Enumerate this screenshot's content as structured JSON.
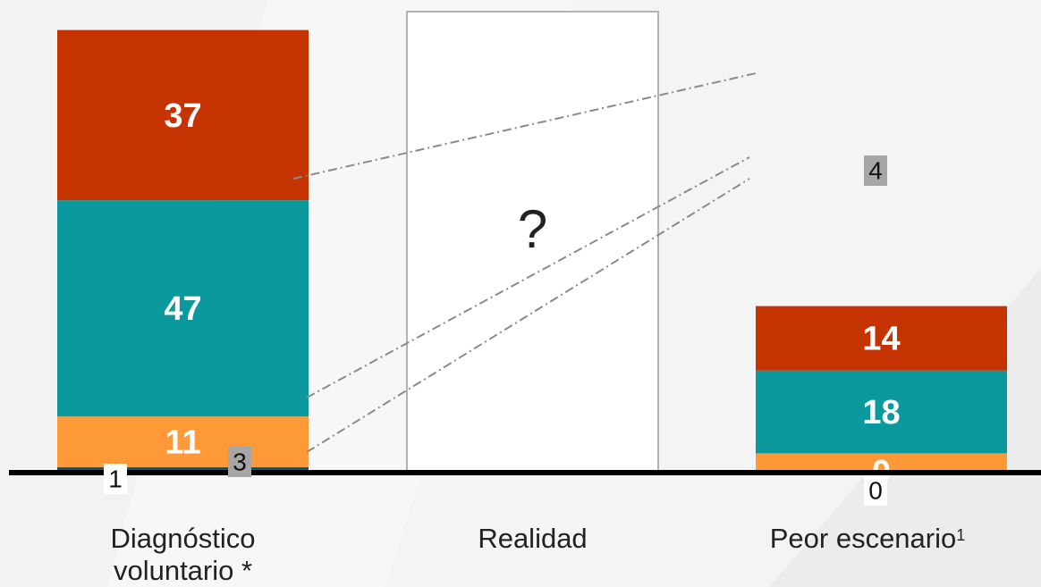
{
  "chart_data": {
    "type": "bar",
    "stacked": true,
    "categories": [
      "Diagnóstico voluntario *",
      "Realidad",
      "Peor escenario"
    ],
    "category_footnote": {
      "Peor escenario": "1"
    },
    "segment_order_bottom_to_top": [
      "dark-blue",
      "orange",
      "teal",
      "red"
    ],
    "series": [
      {
        "key": "dark-blue",
        "color": "#045a80",
        "values": [
          1,
          null,
          0
        ]
      },
      {
        "key": "small-gray",
        "color": "#a6a6a6",
        "values": [
          3,
          null,
          null
        ]
      },
      {
        "key": "orange",
        "color": "#fd9a37",
        "values": [
          11,
          null,
          4
        ]
      },
      {
        "key": "teal",
        "color": "#0c999e",
        "values": [
          47,
          null,
          18
        ]
      },
      {
        "key": "red",
        "color": "#c43300",
        "values": [
          37,
          null,
          14
        ]
      }
    ],
    "unknown_marker": "?",
    "ylim": [
      0,
      100
    ],
    "title": "",
    "xlabel": "",
    "ylabel": "",
    "grid": false,
    "legend": "none"
  },
  "labels": {
    "cat0_line1": "Diagnóstico",
    "cat0_line2": "voluntario *",
    "cat1": "Realidad",
    "cat2": "Peor escenario",
    "cat2_sup": "1"
  }
}
